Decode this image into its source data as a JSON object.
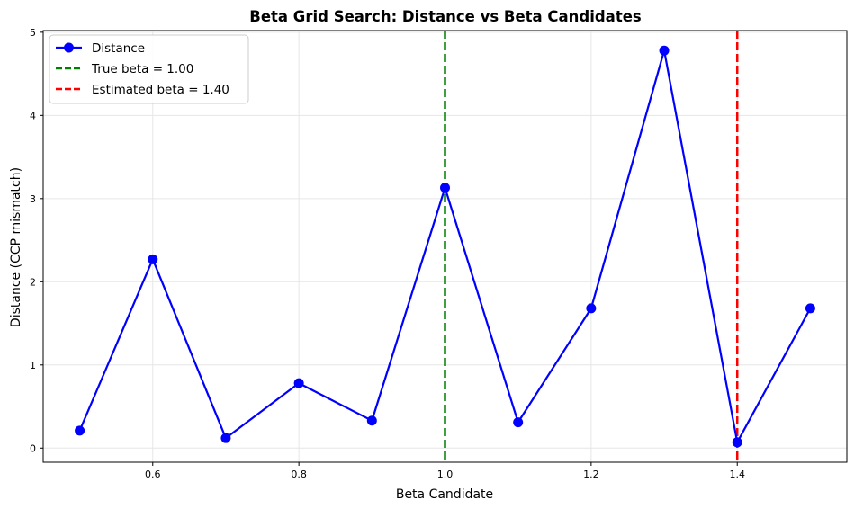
{
  "chart_data": {
    "type": "line",
    "title": "Beta Grid Search: Distance vs Beta Candidates",
    "xlabel": "Beta Candidate",
    "ylabel": "Distance (CCP mismatch)",
    "xlim": [
      0.45,
      1.55
    ],
    "ylim": [
      -0.17,
      5.02
    ],
    "xticks": [
      0.6,
      0.8,
      1.0,
      1.2,
      1.4
    ],
    "xtick_labels": [
      "0.6",
      "0.8",
      "1.0",
      "1.2",
      "1.4"
    ],
    "yticks": [
      0,
      1,
      2,
      3,
      4,
      5
    ],
    "ytick_labels": [
      "0",
      "1",
      "2",
      "3",
      "4",
      "5"
    ],
    "grid": true,
    "legend_position": "top-left",
    "series": [
      {
        "name": "Distance",
        "color": "#0000ff",
        "marker": "circle",
        "x": [
          0.5,
          0.6,
          0.7,
          0.8,
          0.9,
          1.0,
          1.1,
          1.2,
          1.3,
          1.4,
          1.5
        ],
        "y": [
          0.21,
          2.27,
          0.12,
          0.78,
          0.33,
          3.13,
          0.31,
          1.68,
          4.78,
          0.07,
          1.68
        ]
      }
    ],
    "vlines": [
      {
        "name": "True beta = 1.00",
        "x": 1.0,
        "color": "#008000",
        "style": "dashed"
      },
      {
        "name": "Estimated beta = 1.40",
        "x": 1.4,
        "color": "#ff0000",
        "style": "dashed"
      }
    ]
  }
}
